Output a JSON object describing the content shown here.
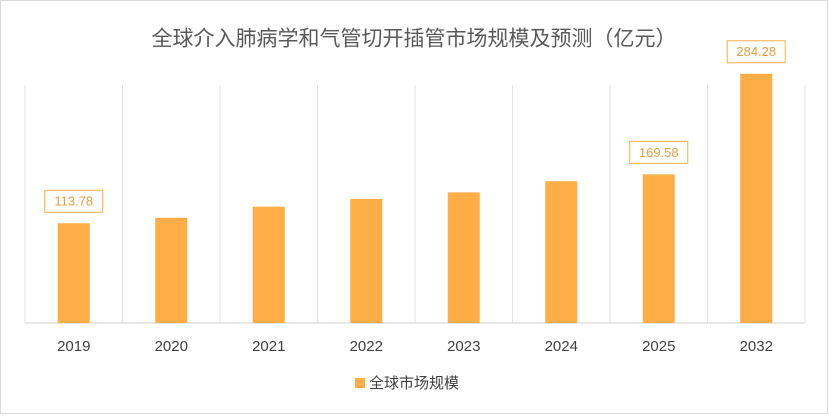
{
  "chart_data": {
    "type": "bar",
    "title": "全球介入肺病学和气管切开插管市场规模及预测（亿元）",
    "categories": [
      "2019",
      "2020",
      "2021",
      "2022",
      "2023",
      "2024",
      "2025",
      "2032"
    ],
    "series": [
      {
        "name": "全球市场规模",
        "color": "#ffad47",
        "values": [
          113.78,
          120,
          132.7,
          141.5,
          149,
          161.7,
          169.58,
          284.28
        ],
        "value_labels": [
          "113.78",
          null,
          null,
          null,
          null,
          null,
          "169.58",
          "284.28"
        ]
      }
    ],
    "ylim": [
      0,
      300
    ],
    "grid": true,
    "legend": "bottom"
  }
}
